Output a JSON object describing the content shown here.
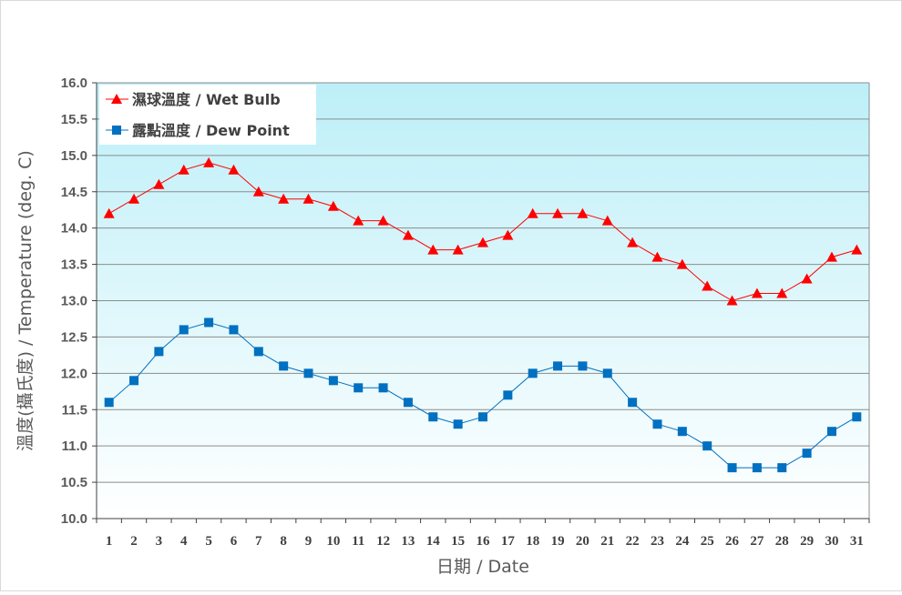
{
  "chart_data": {
    "type": "line",
    "title": "",
    "xlabel": "日期 / Date",
    "ylabel": "溫度(攝氏度) / Temperature (deg. C)",
    "ylim": [
      10.0,
      16.0
    ],
    "ytick_step": 0.5,
    "grid": "horizontal",
    "legend_placement": "top-left",
    "background": {
      "top_color": "#bdeff8",
      "bottom_color": "#ffffff"
    },
    "categories": [
      "1",
      "2",
      "3",
      "4",
      "5",
      "6",
      "7",
      "8",
      "9",
      "10",
      "11",
      "12",
      "13",
      "14",
      "15",
      "16",
      "17",
      "18",
      "19",
      "20",
      "21",
      "22",
      "23",
      "24",
      "25",
      "26",
      "27",
      "28",
      "29",
      "30",
      "31"
    ],
    "series": [
      {
        "name": "濕球溫度 / Wet Bulb",
        "color": "#ff0000",
        "marker": "triangle",
        "values": [
          14.2,
          14.4,
          14.6,
          14.8,
          14.9,
          14.8,
          14.5,
          14.4,
          14.4,
          14.3,
          14.1,
          14.1,
          13.9,
          13.7,
          13.7,
          13.8,
          13.9,
          14.2,
          14.2,
          14.2,
          14.1,
          13.8,
          13.6,
          13.5,
          13.2,
          13.0,
          13.1,
          13.1,
          13.3,
          13.6,
          13.7
        ]
      },
      {
        "name": "露點溫度 / Dew Point",
        "color": "#0070c0",
        "marker": "square",
        "values": [
          11.6,
          11.9,
          12.3,
          12.6,
          12.7,
          12.6,
          12.3,
          12.1,
          12.0,
          11.9,
          11.8,
          11.8,
          11.6,
          11.4,
          11.3,
          11.4,
          11.7,
          12.0,
          12.1,
          12.1,
          12.0,
          11.6,
          11.3,
          11.2,
          11.0,
          10.7,
          10.7,
          10.7,
          10.9,
          11.2,
          11.4
        ]
      }
    ]
  }
}
